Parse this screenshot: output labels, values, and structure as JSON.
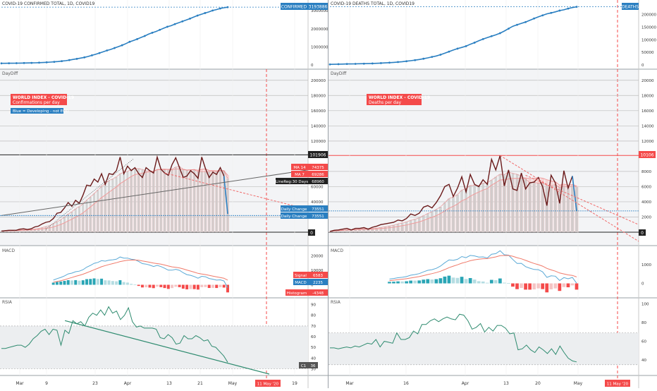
{
  "colors": {
    "primary": "#2a7fc1",
    "red": "#f44a4a",
    "teal": "#2aa5b5",
    "lightteal": "#b5dde2",
    "pink": "#f5c4c4",
    "rsi": "#2e8b6f",
    "panel_bg": "#f3f4f6",
    "grid": "#e8e8e8"
  },
  "charts": {
    "left": {
      "title": "COVID-19 CONFIRMED TOTAL, 1D, COVID19",
      "badge": "CONFIRMED",
      "badge_value": "3193886"
    },
    "right": {
      "title": "COVID-19 DEATHS TOTAL, 1D, COVID19",
      "badge": "DEATHS"
    }
  },
  "panels": {
    "dd": "DayDiff",
    "macd": "MACD",
    "rsi": "RSIA"
  },
  "labels": {
    "left_index_title": "WORLD INDEX - COVID-19",
    "left_index_sub": "Confirmations per day",
    "left_blue_note": "Blue = Developing - not EOD",
    "right_index_title": "WORLD INDEX - COVID-19",
    "right_index_sub": "Deaths per day",
    "left_level": "101906",
    "right_level": "10106",
    "zero": "0",
    "ma14_label": "MA 14",
    "ma14_value": "74375",
    "ma7_label": "MA 7",
    "ma7_value": "69286",
    "linreg_label": "LineReg:30 Days",
    "linreg_value": "68960",
    "daily1_label": "Daily Change",
    "daily1_value": "73551",
    "daily2_label": "Daily Change",
    "daily2_value": "73551",
    "signal_label": "Signal",
    "signal_value": "6583",
    "macd_label": "MACD",
    "macd_value": "2235",
    "hist_label": "Histogram",
    "hist_value": "-4348",
    "c1_label": "C1",
    "c1_value": "36",
    "date_flag_left": "11 May '20",
    "date_flag_right": "11 May '20"
  },
  "axes": {
    "left_total": [
      "3000000",
      "2000000",
      "1000000",
      "0"
    ],
    "right_total": [
      "200000",
      "150000",
      "100000",
      "50000",
      "0"
    ],
    "left_dd": [
      "200000",
      "180000",
      "160000",
      "140000",
      "120000",
      "60000",
      "40000",
      "20000"
    ],
    "right_dd": [
      "20000",
      "18000",
      "16000",
      "14000",
      "12000",
      "8000",
      "6000",
      "4000",
      "2000"
    ],
    "left_macd": [
      "20000",
      "10000",
      "0"
    ],
    "right_macd": [
      "1000",
      "0"
    ],
    "left_rsi": [
      "90",
      "80",
      "70",
      "60",
      "50",
      "40",
      "30"
    ],
    "right_rsi": [
      "100",
      "80",
      "60",
      "40"
    ],
    "left_time": [
      "Mar",
      "9",
      "23",
      "Apr",
      "13",
      "21",
      "May",
      "19"
    ],
    "right_time": [
      "Mar",
      "16",
      "Apr",
      "13",
      "20",
      "May"
    ]
  },
  "chart_data": [
    {
      "type": "line",
      "title": "COVID-19 CONFIRMED TOTAL, 1D, COVID19",
      "panels": [
        "total",
        "DayDiff",
        "MACD",
        "RSIA"
      ],
      "last_total": 3193886,
      "x_ticks": [
        "Mar",
        "9",
        "23",
        "Apr",
        "13",
        "21",
        "May",
        "19"
      ],
      "total_ylim": [
        0,
        3200000
      ],
      "daily_ylim": [
        0,
        210000
      ],
      "total_values": [
        88000,
        90000,
        93000,
        95000,
        97000,
        101000,
        105000,
        109000,
        113000,
        118000,
        125000,
        133000,
        144000,
        156000,
        170000,
        186000,
        209000,
        234000,
        266000,
        305000,
        338000,
        380000,
        418000,
        467000,
        530000,
        590000,
        660000,
        725000,
        800000,
        860000,
        935000,
        1010000,
        1090000,
        1180000,
        1280000,
        1350000,
        1430000,
        1520000,
        1600000,
        1700000,
        1780000,
        1850000,
        1940000,
        2030000,
        2110000,
        2170000,
        2260000,
        2330000,
        2410000,
        2480000,
        2560000,
        2650000,
        2730000,
        2800000,
        2870000,
        2930000,
        3010000,
        3060000,
        3120000,
        3160000,
        3193886
      ],
      "daily_values": [
        1500,
        2000,
        2500,
        2500,
        2500,
        4000,
        4500,
        3500,
        4500,
        7000,
        8000,
        11000,
        13000,
        14000,
        18000,
        25000,
        26000,
        32000,
        39000,
        34000,
        42000,
        38000,
        49000,
        62000,
        61000,
        70000,
        66000,
        77000,
        63000,
        77000,
        76000,
        81000,
        99000,
        77000,
        87000,
        81000,
        85000,
        77000,
        72000,
        85000,
        81000,
        78000,
        99000,
        83000,
        78000,
        75000,
        89000,
        98000,
        85000,
        72000,
        74000,
        81000,
        77000,
        71000,
        99000,
        84000,
        72000,
        79000,
        76000,
        85000,
        74000,
        24000
      ],
      "ma14": 74375,
      "ma7": 69286,
      "linreg_30d": 68960,
      "daily_change": 73551,
      "level": 101906,
      "macd": 2235,
      "signal": 6583,
      "histogram": -4348,
      "macd_ylim": [
        -8000,
        24000
      ],
      "rsi_values": [
        49,
        49,
        50,
        51,
        52,
        52,
        50,
        53,
        58,
        61,
        65,
        67,
        62,
        67,
        66,
        52,
        66,
        63,
        75,
        72,
        74,
        70,
        78,
        82,
        80,
        85,
        80,
        88,
        82,
        84,
        76,
        80,
        87,
        74,
        69,
        70,
        68,
        68,
        68,
        67,
        59,
        58,
        62,
        59,
        53,
        54,
        61,
        58,
        58,
        61,
        59,
        56,
        57,
        51,
        50,
        46,
        42,
        36
      ],
      "rsi_last": 36,
      "rsi_ylim": [
        25,
        95
      ]
    },
    {
      "type": "line",
      "title": "COVID-19 DEATHS TOTAL, 1D, COVID19",
      "panels": [
        "total",
        "DayDiff",
        "MACD",
        "RSIA"
      ],
      "x_ticks": [
        "Mar",
        "16",
        "Apr",
        "13",
        "20",
        "May"
      ],
      "total_ylim": [
        0,
        230000
      ],
      "daily_ylim": [
        0,
        21000
      ],
      "total_values": [
        2200,
        2500,
        3000,
        3300,
        3800,
        4000,
        4300,
        4700,
        5000,
        5400,
        5800,
        6500,
        7200,
        8000,
        9000,
        10200,
        11400,
        13000,
        14800,
        16800,
        19000,
        21500,
        24700,
        28000,
        31900,
        35700,
        40600,
        46500,
        52900,
        59200,
        64700,
        69500,
        74600,
        82200,
        88500,
        95800,
        102700,
        108800,
        114200,
        119600,
        126200,
        134600,
        144100,
        153700,
        159600,
        165100,
        170400,
        177600,
        184600,
        191000,
        197000,
        203000,
        206700,
        211000,
        216100,
        219000,
        224000,
        228000,
        231000
      ],
      "daily_values": [
        100,
        250,
        300,
        400,
        500,
        300,
        500,
        500,
        600,
        400,
        650,
        800,
        1000,
        1100,
        1200,
        1300,
        1600,
        1500,
        1800,
        2400,
        2200,
        2500,
        3300,
        3500,
        3200,
        3900,
        4800,
        6000,
        6300,
        4700,
        5800,
        7300,
        5300,
        7600,
        6300,
        6000,
        6900,
        6300,
        9600,
        8200,
        10100,
        6100,
        8200,
        5700,
        5500,
        7800,
        5700,
        6500,
        6600,
        7200,
        6000,
        3500,
        7500,
        6500,
        3800,
        8100,
        5800,
        7400,
        2800
      ],
      "level": 10106,
      "macd_ylim": [
        -700,
        1800
      ],
      "rsi_values": [
        53,
        53,
        52,
        53,
        54,
        53,
        55,
        54,
        56,
        58,
        57,
        62,
        54,
        60,
        59,
        58,
        69,
        62,
        62,
        64,
        71,
        68,
        78,
        78,
        82,
        84,
        81,
        84,
        86,
        84,
        83,
        89,
        88,
        82,
        73,
        75,
        79,
        70,
        75,
        71,
        77,
        77,
        74,
        68,
        69,
        51,
        52,
        56,
        51,
        48,
        54,
        51,
        47,
        52,
        46,
        55,
        48,
        42,
        39,
        38
      ],
      "rsi_ylim": [
        25,
        105
      ]
    }
  ]
}
